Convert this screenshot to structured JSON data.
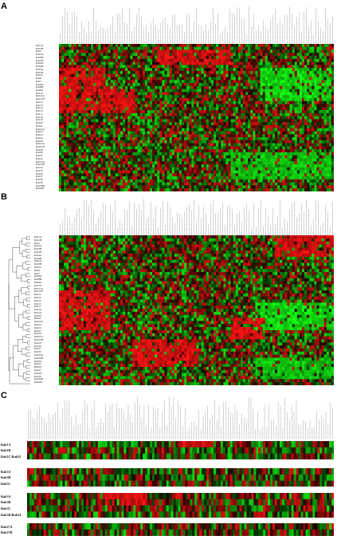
{
  "panels": {
    "A": {
      "letter": "A",
      "row_labels": [
        "Rab1A",
        "Rab1B",
        "Rab2",
        "Rab3A",
        "Rab3B",
        "Rab3D",
        "Rab4A",
        "Rab4B",
        "Rab5A",
        "Rab5B",
        "Rab5C",
        "Rab6",
        "Rab7",
        "Rab8A",
        "Rab8B",
        "Rab9A",
        "Rab10",
        "Rab11A",
        "Rab11B",
        "Rab12",
        "Rab13",
        "Rab14",
        "Rab15",
        "Rab17",
        "Rab18",
        "Rab19",
        "Rab20",
        "Rab21",
        "Rab22A",
        "Rab23",
        "Rab24",
        "Rab25",
        "Rab26",
        "Rab27A",
        "Rab27B",
        "Rab28",
        "Rab30",
        "Rab31",
        "Rab32",
        "Rab33A",
        "Rab33B",
        "Rab34",
        "Rab35",
        "Rab36",
        "Rab37",
        "Rab38",
        "Rab39",
        "Rab40B",
        "Rab40C"
      ]
    },
    "B": {
      "letter": "B",
      "row_labels": [
        "Rab1A",
        "Rab1B",
        "Rab2",
        "Rab3A",
        "Rab3B",
        "Rab3D",
        "Rab4A",
        "Rab4B",
        "Rab5A",
        "Rab5B",
        "Rab5C",
        "Rab6",
        "Rab7",
        "Rab8A",
        "Rab8B",
        "Rab9A",
        "Rab10",
        "Rab11A",
        "Rab11B",
        "Rab12",
        "Rab13",
        "Rab14",
        "Rab15",
        "Rab17",
        "Rab18",
        "Rab19",
        "Rab20",
        "Rab21",
        "Rab22A",
        "Rab23",
        "Rab24",
        "Rab25",
        "Rab26",
        "Rab27A",
        "Rab27B",
        "Rab28",
        "Rab30",
        "Rab31",
        "Rab32",
        "Rab33A",
        "Rab33B",
        "Rab34",
        "Rab35",
        "Rab36",
        "Rab37",
        "Rab38",
        "Rab39",
        "Rab40B",
        "Rab40C"
      ]
    },
    "C": {
      "letter": "C",
      "groups": [
        {
          "labels": [
            "Rab1A",
            "Rab1B",
            "Rab1C/Rab35"
          ]
        },
        {
          "labels": [
            "Rab5A",
            "Rab5B",
            "Rab5C"
          ]
        },
        {
          "labels": [
            "Rab3A",
            "Rab3B",
            "Rab3C",
            "Rab3D/Rab14"
          ]
        },
        {
          "labels": [
            "Rab27A",
            "Rab27B"
          ]
        }
      ]
    }
  },
  "colors": {
    "red": "#ff1a1a",
    "green": "#1ee61e",
    "black": "#000000"
  }
}
